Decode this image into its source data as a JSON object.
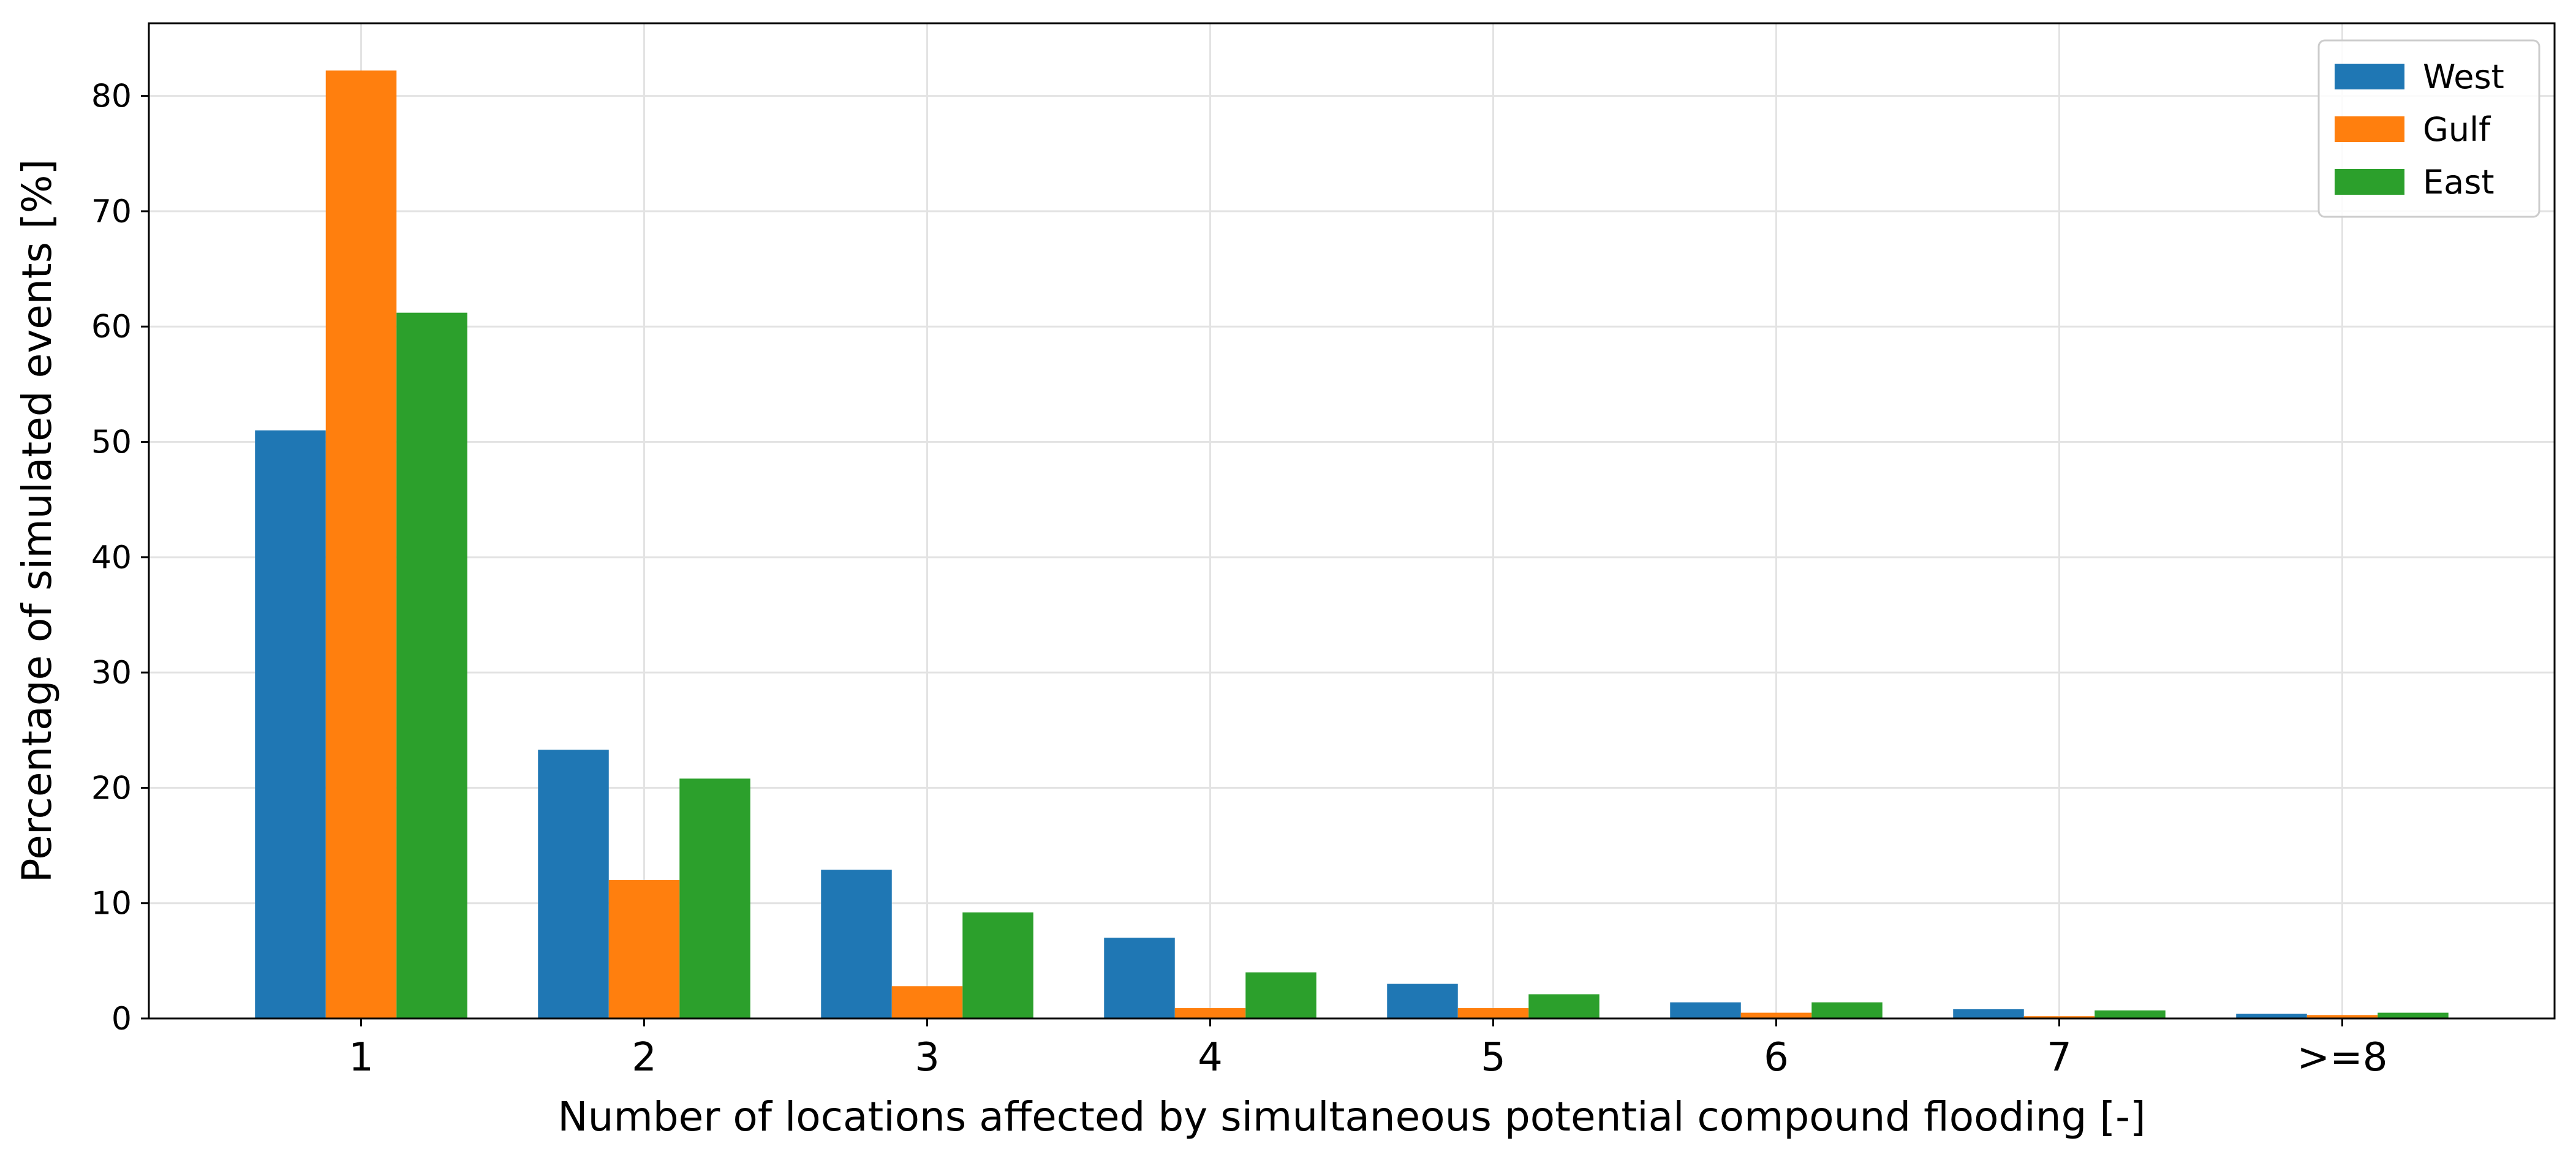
{
  "chart_data": {
    "type": "bar",
    "title": "",
    "xlabel": "Number of locations affected by simultaneous potential compound flooding [-]",
    "ylabel": "Percentage of simulated events [%]",
    "categories": [
      "1",
      "2",
      "3",
      "4",
      "5",
      "6",
      "7",
      ">=8"
    ],
    "series": [
      {
        "name": "West",
        "color": "#1f77b4",
        "values": [
          51.0,
          23.3,
          12.9,
          7.0,
          3.0,
          1.4,
          0.8,
          0.4
        ]
      },
      {
        "name": "Gulf",
        "color": "#ff7f0e",
        "values": [
          82.2,
          12.0,
          2.8,
          0.9,
          0.9,
          0.5,
          0.2,
          0.3
        ]
      },
      {
        "name": "East",
        "color": "#2ca02c",
        "values": [
          61.2,
          20.8,
          9.2,
          4.0,
          2.1,
          1.4,
          0.7,
          0.5
        ]
      }
    ],
    "ylim": [
      0,
      86.3
    ],
    "yticks": [
      0,
      10,
      20,
      30,
      40,
      50,
      60,
      70,
      80
    ],
    "grid": true,
    "legend_position": "top-right"
  }
}
